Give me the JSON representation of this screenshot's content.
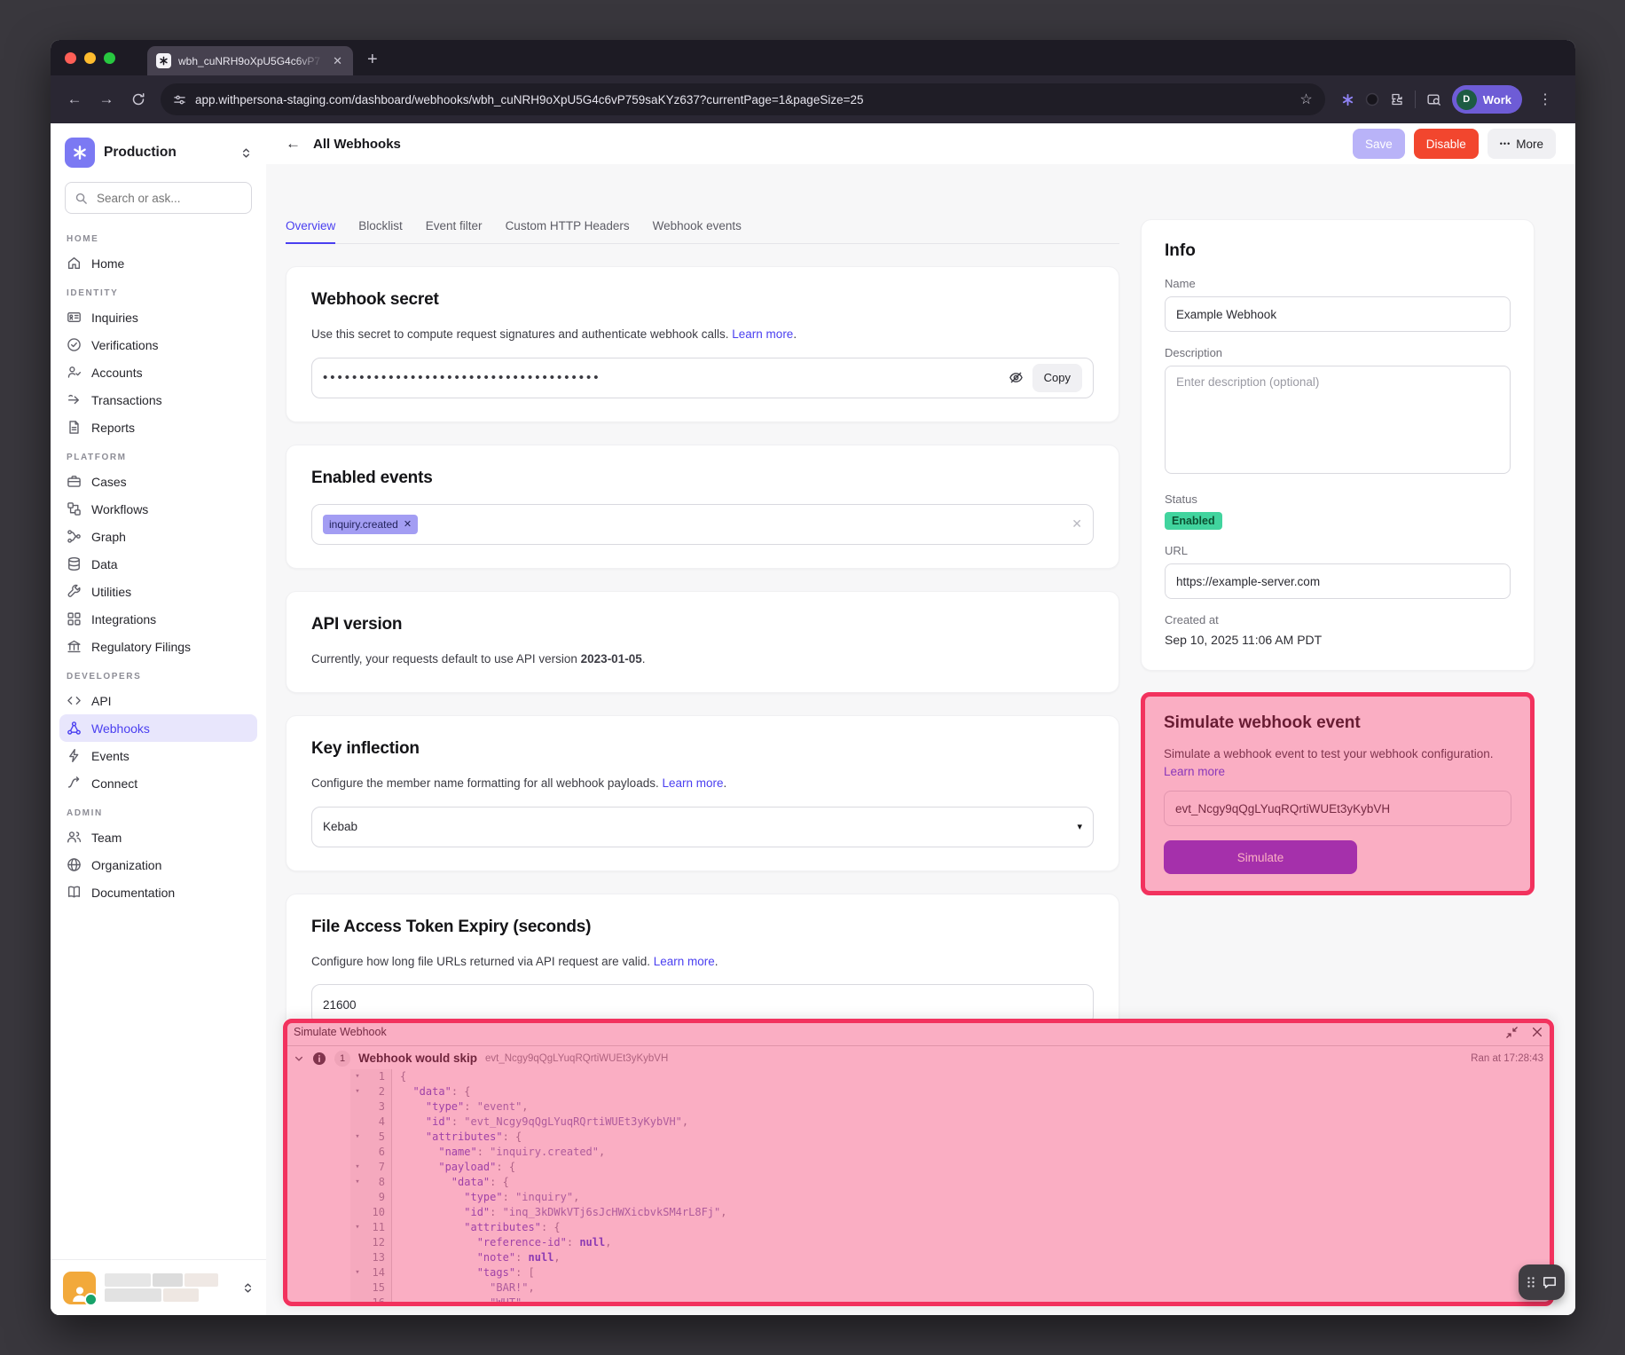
{
  "browser": {
    "tab_title": "wbh_cuNRH9oXpU5G4c6vP7",
    "url": "app.withpersona-staging.com/dashboard/webhooks/wbh_cuNRH9oXpU5G4c6vP759saKYz637?currentPage=1&pageSize=25",
    "profile_initial": "D",
    "profile_label": "Work"
  },
  "sidebar": {
    "workspace": "Production",
    "search_placeholder": "Search or ask...",
    "sections": [
      {
        "label": "HOME",
        "items": [
          {
            "label": "Home",
            "icon": "home-icon"
          }
        ]
      },
      {
        "label": "IDENTITY",
        "items": [
          {
            "label": "Inquiries",
            "icon": "id-card-icon"
          },
          {
            "label": "Verifications",
            "icon": "check-circle-icon"
          },
          {
            "label": "Accounts",
            "icon": "user-check-icon"
          },
          {
            "label": "Transactions",
            "icon": "arrow-right-icon"
          },
          {
            "label": "Reports",
            "icon": "document-icon"
          }
        ]
      },
      {
        "label": "PLATFORM",
        "items": [
          {
            "label": "Cases",
            "icon": "briefcase-icon"
          },
          {
            "label": "Workflows",
            "icon": "workflow-icon"
          },
          {
            "label": "Graph",
            "icon": "graph-icon"
          },
          {
            "label": "Data",
            "icon": "database-icon"
          },
          {
            "label": "Utilities",
            "icon": "wrench-icon"
          },
          {
            "label": "Integrations",
            "icon": "grid-icon"
          },
          {
            "label": "Regulatory Filings",
            "icon": "bank-icon"
          }
        ]
      },
      {
        "label": "DEVELOPERS",
        "items": [
          {
            "label": "API",
            "icon": "code-icon"
          },
          {
            "label": "Webhooks",
            "icon": "webhook-icon",
            "active": true
          },
          {
            "label": "Events",
            "icon": "bolt-icon"
          },
          {
            "label": "Connect",
            "icon": "connect-icon"
          }
        ]
      },
      {
        "label": "ADMIN",
        "items": [
          {
            "label": "Team",
            "icon": "users-icon"
          },
          {
            "label": "Organization",
            "icon": "globe-icon"
          },
          {
            "label": "Documentation",
            "icon": "book-icon"
          }
        ]
      }
    ]
  },
  "header": {
    "back_label": "All Webhooks",
    "save": "Save",
    "disable": "Disable",
    "more": "More",
    "more_dots": "•••"
  },
  "tabs": [
    {
      "label": "Overview",
      "active": true
    },
    {
      "label": "Blocklist"
    },
    {
      "label": "Event filter"
    },
    {
      "label": "Custom HTTP Headers"
    },
    {
      "label": "Webhook events"
    }
  ],
  "cards": {
    "webhook_secret": {
      "title": "Webhook secret",
      "description": "Use this secret to compute request signatures and authenticate webhook calls. ",
      "link": "Learn more",
      "masked_value": "••••••••••••••••••••••••••••••••••••••",
      "copy_label": "Copy"
    },
    "enabled_events": {
      "title": "Enabled events",
      "tag": "inquiry.created",
      "tag_remove": "✕",
      "clear": "✕"
    },
    "api_version": {
      "title": "API version",
      "text_before": "Currently, your requests default to use API version ",
      "version": "2023-01-05",
      "text_after": "."
    },
    "key_inflection": {
      "title": "Key inflection",
      "description": "Configure the member name formatting for all webhook payloads. ",
      "link": "Learn more",
      "value": "Kebab"
    },
    "file_access": {
      "title": "File Access Token Expiry (seconds)",
      "description": "Configure how long file URLs returned via API request are valid. ",
      "link": "Learn more",
      "value": "21600"
    }
  },
  "info": {
    "title": "Info",
    "name_label": "Name",
    "name_value": "Example Webhook",
    "description_label": "Description",
    "description_placeholder": "Enter description (optional)",
    "status_label": "Status",
    "status_value": "Enabled",
    "url_label": "URL",
    "url_value": "https://example-server.com",
    "created_label": "Created at",
    "created_value": "Sep 10, 2025 11:06 AM PDT"
  },
  "simulate": {
    "title": "Simulate webhook event",
    "description": "Simulate a webhook event to test your webhook configuration.",
    "link": "Learn more",
    "event_id": "evt_Ncgy9qQgLYuqRQrtiWUEt3yKybVH",
    "button": "Simulate"
  },
  "console": {
    "title": "Simulate Webhook",
    "result_count": "1",
    "result_title": "Webhook would skip",
    "event_id": "evt_Ncgy9qQgLYuqRQrtiWUEt3yKybVH",
    "ran_at": "Ran at 17:28:43",
    "code_lines": [
      {
        "n": 1,
        "fold": true,
        "segments": [
          [
            "p",
            "{"
          ]
        ]
      },
      {
        "n": 2,
        "fold": true,
        "segments": [
          [
            "w",
            "  "
          ],
          [
            "k",
            "\"data\""
          ],
          [
            "p",
            ": {"
          ]
        ]
      },
      {
        "n": 3,
        "fold": false,
        "segments": [
          [
            "w",
            "    "
          ],
          [
            "k",
            "\"type\""
          ],
          [
            "p",
            ": "
          ],
          [
            "s",
            "\"event\""
          ],
          [
            "p",
            ","
          ]
        ]
      },
      {
        "n": 4,
        "fold": false,
        "segments": [
          [
            "w",
            "    "
          ],
          [
            "k",
            "\"id\""
          ],
          [
            "p",
            ": "
          ],
          [
            "s",
            "\"evt_Ncgy9qQgLYuqRQrtiWUEt3yKybVH\""
          ],
          [
            "p",
            ","
          ]
        ]
      },
      {
        "n": 5,
        "fold": true,
        "segments": [
          [
            "w",
            "    "
          ],
          [
            "k",
            "\"attributes\""
          ],
          [
            "p",
            ": {"
          ]
        ]
      },
      {
        "n": 6,
        "fold": false,
        "segments": [
          [
            "w",
            "      "
          ],
          [
            "k",
            "\"name\""
          ],
          [
            "p",
            ": "
          ],
          [
            "s",
            "\"inquiry.created\""
          ],
          [
            "p",
            ","
          ]
        ]
      },
      {
        "n": 7,
        "fold": true,
        "segments": [
          [
            "w",
            "      "
          ],
          [
            "k",
            "\"payload\""
          ],
          [
            "p",
            ": {"
          ]
        ]
      },
      {
        "n": 8,
        "fold": true,
        "segments": [
          [
            "w",
            "        "
          ],
          [
            "k",
            "\"data\""
          ],
          [
            "p",
            ": {"
          ]
        ]
      },
      {
        "n": 9,
        "fold": false,
        "segments": [
          [
            "w",
            "          "
          ],
          [
            "k",
            "\"type\""
          ],
          [
            "p",
            ": "
          ],
          [
            "s",
            "\"inquiry\""
          ],
          [
            "p",
            ","
          ]
        ]
      },
      {
        "n": 10,
        "fold": false,
        "segments": [
          [
            "w",
            "          "
          ],
          [
            "k",
            "\"id\""
          ],
          [
            "p",
            ": "
          ],
          [
            "s",
            "\"inq_3kDWkVTj6sJcHWXicbvkSM4rL8Fj\""
          ],
          [
            "p",
            ","
          ]
        ]
      },
      {
        "n": 11,
        "fold": true,
        "segments": [
          [
            "w",
            "          "
          ],
          [
            "k",
            "\"attributes\""
          ],
          [
            "p",
            ": {"
          ]
        ]
      },
      {
        "n": 12,
        "fold": false,
        "segments": [
          [
            "w",
            "            "
          ],
          [
            "k",
            "\"reference-id\""
          ],
          [
            "p",
            ": "
          ],
          [
            "u",
            "null"
          ],
          [
            "p",
            ","
          ]
        ]
      },
      {
        "n": 13,
        "fold": false,
        "segments": [
          [
            "w",
            "            "
          ],
          [
            "k",
            "\"note\""
          ],
          [
            "p",
            ": "
          ],
          [
            "u",
            "null"
          ],
          [
            "p",
            ","
          ]
        ]
      },
      {
        "n": 14,
        "fold": true,
        "segments": [
          [
            "w",
            "            "
          ],
          [
            "k",
            "\"tags\""
          ],
          [
            "p",
            ": ["
          ]
        ]
      },
      {
        "n": 15,
        "fold": false,
        "segments": [
          [
            "w",
            "              "
          ],
          [
            "s",
            "\"BAR!\""
          ],
          [
            "p",
            ","
          ]
        ]
      },
      {
        "n": 16,
        "fold": false,
        "segments": [
          [
            "w",
            "              "
          ],
          [
            "s",
            "\"WUT\""
          ]
        ]
      }
    ]
  },
  "colors": {
    "accent": "#4a3ff0",
    "danger": "#f2462e",
    "highlight": "#f2325e",
    "status_enabled": "#41d49e",
    "simulate_button": "#7634d8"
  }
}
